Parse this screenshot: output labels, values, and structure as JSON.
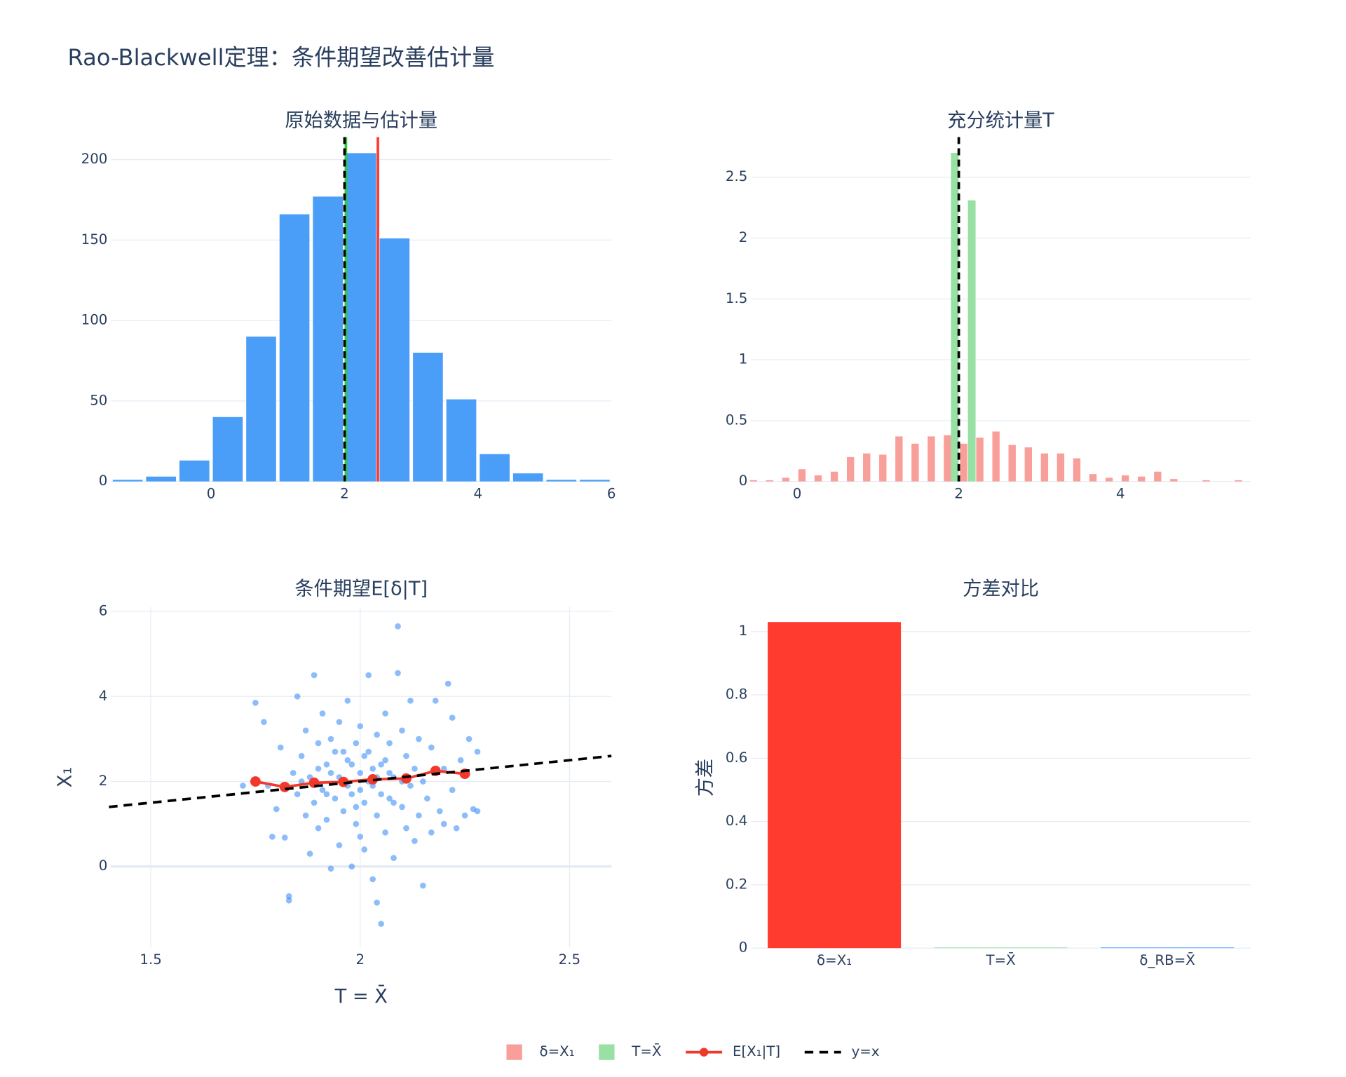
{
  "title": "Rao-Blackwell定理：条件期望改善估计量",
  "legend_position": "bottom",
  "chart_data": [
    {
      "type": "histogram",
      "title": "原始数据与估计量",
      "color": "#4a9ef8",
      "bins": [
        -1.5,
        -1,
        -0.5,
        0,
        0.5,
        1,
        1.5,
        2,
        2.5,
        3,
        3.5,
        4,
        4.5,
        5,
        5.5,
        6
      ],
      "values": [
        1,
        3,
        13,
        40,
        90,
        166,
        177,
        204,
        151,
        80,
        51,
        17,
        5,
        1,
        1
      ],
      "vlines": [
        {
          "x": 2.02,
          "color": "#2ecc40",
          "dash": false
        },
        {
          "x": 2.5,
          "color": "#ff3b30",
          "dash": false
        },
        {
          "x": 2.0,
          "color": "#000000",
          "dash": true
        }
      ],
      "xlim": [
        -1.5,
        6
      ],
      "ylim": [
        0,
        214
      ],
      "xticks": [
        0,
        2,
        4,
        6
      ],
      "yticks": [
        0,
        50,
        100,
        150,
        200
      ],
      "grid": true
    },
    {
      "type": "bar",
      "title": "充分统计量T",
      "series": [
        {
          "name": "δ=X₁",
          "color": "#f99f9a",
          "x": [
            -0.54,
            -0.34,
            -0.14,
            0.06,
            0.26,
            0.46,
            0.66,
            0.86,
            1.06,
            1.26,
            1.46,
            1.66,
            1.86,
            2.06,
            2.26,
            2.46,
            2.66,
            2.86,
            3.06,
            3.26,
            3.46,
            3.66,
            3.86,
            4.06,
            4.26,
            4.46,
            4.66,
            4.86,
            5.06,
            5.26,
            5.46
          ],
          "values": [
            0.01,
            0.01,
            0.03,
            0.1,
            0.05,
            0.08,
            0.2,
            0.23,
            0.22,
            0.37,
            0.31,
            0.37,
            0.38,
            0.31,
            0.36,
            0.41,
            0.3,
            0.28,
            0.23,
            0.23,
            0.19,
            0.06,
            0.03,
            0.05,
            0.04,
            0.08,
            0.02,
            0,
            0.01,
            0,
            0.01
          ]
        },
        {
          "name": "T=X̄",
          "color": "#98e0a3",
          "x": [
            1.95,
            2.16
          ],
          "values": [
            2.7,
            2.31
          ]
        }
      ],
      "vlines": [
        {
          "x": 2.0,
          "color": "#000000",
          "dash": true
        }
      ],
      "xlim": [
        -0.57,
        5.61
      ],
      "ylim": [
        0,
        2.83
      ],
      "xticks": [
        0,
        2,
        4
      ],
      "yticks": [
        0,
        0.5,
        1,
        1.5,
        2,
        2.5
      ],
      "grid": true
    },
    {
      "type": "scatter",
      "title": "条件期望E[δ|T]",
      "xlabel": "T = X̄",
      "ylabel": "X₁",
      "series": [
        {
          "mode": "markers",
          "color": "#1a7cf5",
          "x": [
            1.75,
            1.77,
            1.78,
            1.79,
            1.8,
            1.81,
            1.82,
            1.83,
            1.83,
            1.84,
            1.85,
            1.85,
            1.86,
            1.87,
            1.87,
            1.88,
            1.88,
            1.89,
            1.89,
            1.9,
            1.9,
            1.91,
            1.91,
            1.92,
            1.92,
            1.93,
            1.93,
            1.94,
            1.94,
            1.95,
            1.95,
            1.96,
            1.96,
            1.97,
            1.97,
            1.98,
            1.98,
            1.99,
            1.99,
            2.0,
            2.0,
            2.01,
            2.01,
            2.02,
            2.02,
            2.03,
            2.03,
            2.04,
            2.04,
            2.05,
            2.05,
            2.04,
            2.06,
            2.06,
            2.07,
            2.07,
            2.08,
            2.08,
            2.09,
            2.09,
            2.1,
            2.1,
            2.11,
            2.11,
            2.12,
            2.12,
            2.13,
            2.13,
            2.14,
            2.14,
            2.15,
            2.15,
            2.16,
            2.17,
            2.17,
            2.18,
            2.19,
            2.2,
            2.2,
            2.21,
            2.22,
            2.22,
            2.23,
            2.24,
            2.25,
            2.26,
            2.27,
            2.28,
            2.28,
            1.72,
            1.86,
            1.9,
            1.95,
            1.98,
            2.0,
            2.02,
            2.05,
            2.07,
            2.1,
            1.93,
            1.97,
            2.03,
            2.08,
            1.96,
            2.01,
            1.99,
            2.06,
            1.92,
            2.04,
            2.0
          ],
          "values": [
            3.85,
            3.4,
            1.9,
            0.7,
            1.35,
            2.8,
            0.68,
            -0.7,
            -0.8,
            2.2,
            1.7,
            4.0,
            2.6,
            1.2,
            3.2,
            0.3,
            2.1,
            4.5,
            1.5,
            2.9,
            0.9,
            1.8,
            3.6,
            2.4,
            1.1,
            -0.05,
            3.0,
            1.6,
            2.7,
            0.5,
            3.4,
            2.0,
            1.3,
            3.9,
            2.5,
            0.0,
            1.7,
            2.9,
            1.0,
            2.2,
            3.3,
            1.5,
            0.4,
            2.7,
            4.5,
            1.9,
            -0.3,
            3.1,
            1.2,
            2.4,
            -1.35,
            -0.85,
            0.8,
            3.6,
            1.6,
            2.9,
            0.2,
            2.1,
            4.55,
            5.65,
            1.4,
            3.2,
            0.9,
            2.6,
            1.9,
            3.9,
            0.6,
            2.3,
            1.2,
            3.0,
            -0.45,
            2.0,
            1.6,
            2.8,
            0.8,
            3.9,
            1.3,
            2.3,
            1.0,
            4.3,
            3.5,
            1.8,
            0.9,
            2.5,
            1.2,
            3.0,
            1.35,
            2.7,
            1.3,
            1.9,
            2.0,
            2.3,
            2.1,
            2.4,
            1.8,
            2.0,
            1.7,
            2.2,
            2.0,
            2.2,
            1.9,
            2.3,
            1.5,
            2.7,
            2.6,
            1.4,
            2.5,
            1.7,
            2.1,
            0.7
          ]
        },
        {
          "name": "E[X₁|T]",
          "mode": "lines+markers",
          "color": "#f0392b",
          "x": [
            1.75,
            1.82,
            1.89,
            1.96,
            2.03,
            2.11,
            2.18,
            2.25
          ],
          "values": [
            2.0,
            1.87,
            1.97,
            1.99,
            2.05,
            2.07,
            2.25,
            2.18
          ]
        },
        {
          "name": "y=x",
          "mode": "lines",
          "dash": true,
          "color": "#000000",
          "x": [
            1.4,
            2.6
          ],
          "values": [
            1.4,
            2.6
          ]
        }
      ],
      "xlim": [
        1.405,
        2.6
      ],
      "ylim": [
        -1.9,
        6.1
      ],
      "xticks": [
        1.5,
        2,
        2.5
      ],
      "yticks": [
        0,
        2,
        4,
        6
      ],
      "grid": true,
      "xgrid": true,
      "zeroline": true
    },
    {
      "type": "bar",
      "title": "方差对比",
      "ylabel": "方差",
      "categories": [
        "δ=X₁",
        "T=X̄",
        "δ_RB=X̄"
      ],
      "values": [
        1.03,
        0.002,
        0.002
      ],
      "colors": [
        "#ff3b30",
        "#98e0a3",
        "#4a9ef8"
      ],
      "ylim": [
        0,
        1.077
      ],
      "yticks": [
        0,
        0.2,
        0.4,
        0.6,
        0.8,
        1
      ],
      "grid": true
    }
  ]
}
